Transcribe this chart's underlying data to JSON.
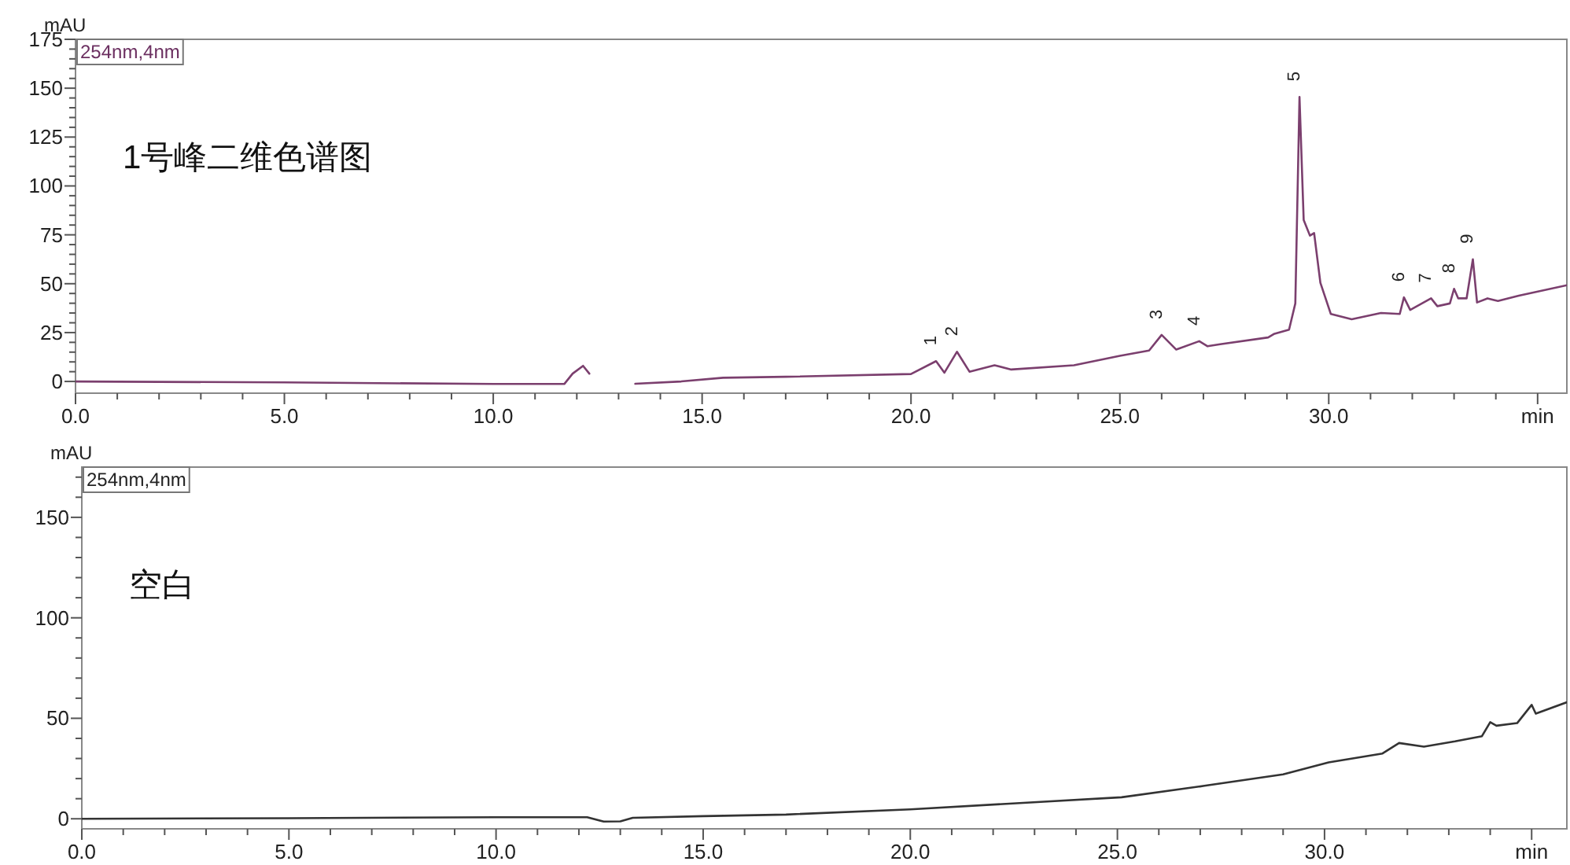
{
  "chart_data": [
    {
      "type": "line",
      "title": "1号峰二维色谱图",
      "ylabel": "mAU",
      "annotations": [
        "254nm,4nm",
        {
          "text": "1",
          "x": 20.6,
          "y": 10.4
        },
        {
          "text": "2",
          "x": 21.1,
          "y": 15.2
        },
        {
          "text": "3",
          "x": 26.0,
          "y": 23.8
        },
        {
          "text": "4",
          "x": 26.9,
          "y": 20.6
        },
        {
          "text": "5",
          "x": 29.3,
          "y": 145.5
        },
        {
          "text": "6",
          "x": 31.8,
          "y": 43
        },
        {
          "text": "7",
          "x": 32.45,
          "y": 42.5
        },
        {
          "text": "8",
          "x": 33.0,
          "y": 47.4
        },
        {
          "text": "9",
          "x": 33.45,
          "y": 62.5
        }
      ],
      "xlim": [
        0,
        35.7
      ],
      "ylim": [
        -6,
        175
      ],
      "xticks": [
        {
          "value": 0,
          "label": "0.0"
        },
        {
          "value": 1,
          "label": null
        },
        {
          "value": 2,
          "label": null
        },
        {
          "value": 3,
          "label": null
        },
        {
          "value": 4,
          "label": null
        },
        {
          "value": 5,
          "label": "5.0"
        },
        {
          "value": 6,
          "label": null
        },
        {
          "value": 7,
          "label": null
        },
        {
          "value": 8,
          "label": null
        },
        {
          "value": 9,
          "label": null
        },
        {
          "value": 10,
          "label": "10.0"
        },
        {
          "value": 11,
          "label": null
        },
        {
          "value": 12,
          "label": null
        },
        {
          "value": 13,
          "label": null
        },
        {
          "value": 14,
          "label": null
        },
        {
          "value": 15,
          "label": "15.0"
        },
        {
          "value": 16,
          "label": null
        },
        {
          "value": 17,
          "label": null
        },
        {
          "value": 18,
          "label": null
        },
        {
          "value": 19,
          "label": null
        },
        {
          "value": 20,
          "label": "20.0"
        },
        {
          "value": 21,
          "label": null
        },
        {
          "value": 22,
          "label": null
        },
        {
          "value": 23,
          "label": null
        },
        {
          "value": 24,
          "label": null
        },
        {
          "value": 25,
          "label": "25.0"
        },
        {
          "value": 26,
          "label": null
        },
        {
          "value": 27,
          "label": null
        },
        {
          "value": 28,
          "label": null
        },
        {
          "value": 29,
          "label": null
        },
        {
          "value": 30,
          "label": "30.0"
        },
        {
          "value": 31,
          "label": null
        },
        {
          "value": 32,
          "label": null
        },
        {
          "value": 33,
          "label": null
        },
        {
          "value": 34,
          "label": null
        },
        {
          "value": 35,
          "label": "min"
        }
      ],
      "yticks": [
        0,
        {
          "value": 5,
          "label": null
        },
        {
          "value": 10,
          "label": null
        },
        {
          "value": 15,
          "label": null
        },
        {
          "value": 20,
          "label": null
        },
        25,
        {
          "value": 30,
          "label": null
        },
        {
          "value": 35,
          "label": null
        },
        {
          "value": 40,
          "label": null
        },
        {
          "value": 45,
          "label": null
        },
        50,
        {
          "value": 55,
          "label": null
        },
        {
          "value": 60,
          "label": null
        },
        {
          "value": 65,
          "label": null
        },
        {
          "value": 70,
          "label": null
        },
        75,
        {
          "value": 80,
          "label": null
        },
        {
          "value": 85,
          "label": null
        },
        {
          "value": 90,
          "label": null
        },
        {
          "value": 95,
          "label": null
        },
        100,
        {
          "value": 105,
          "label": null
        },
        {
          "value": 110,
          "label": null
        },
        {
          "value": 115,
          "label": null
        },
        {
          "value": 120,
          "label": null
        },
        125,
        {
          "value": 130,
          "label": null
        },
        {
          "value": 135,
          "label": null
        },
        {
          "value": 140,
          "label": null
        },
        {
          "value": 145,
          "label": null
        },
        150,
        {
          "value": 155,
          "label": null
        },
        {
          "value": 160,
          "label": null
        },
        {
          "value": 165,
          "label": null
        },
        {
          "value": 170,
          "label": null
        },
        175
      ],
      "x": [
        0,
        5,
        10,
        11.7,
        11.9,
        12.15,
        12.3,
        12.5,
        13.2,
        13.4,
        14.5,
        15.5,
        17.0,
        20.0,
        20.6,
        20.8,
        21.1,
        21.4,
        22.0,
        22.4,
        23.9,
        25.0,
        25.7,
        26.0,
        26.35,
        26.9,
        27.1,
        27.4,
        28.55,
        28.7,
        29.05,
        29.2,
        29.3,
        29.4,
        29.55,
        29.65,
        29.8,
        30.05,
        30.55,
        31.25,
        31.7,
        31.8,
        31.95,
        32.45,
        32.6,
        32.9,
        33.0,
        33.1,
        33.3,
        33.45,
        33.55,
        33.8,
        34.05,
        34.55,
        35.7
      ],
      "series": [
        {
          "color": "#7b3f6e",
          "values": [
            0,
            -0.5,
            -1.3,
            -1.3,
            4,
            8,
            4,
            null,
            null,
            -1.2,
            0,
            1.9,
            2.4,
            3.8,
            10.4,
            4.5,
            15.2,
            5.0,
            8.3,
            6.1,
            8.3,
            13.1,
            15.8,
            23.8,
            16.3,
            20.6,
            18.0,
            19.0,
            22.5,
            24.4,
            26.5,
            39.9,
            145.5,
            82.6,
            74.6,
            75.9,
            50.5,
            34.5,
            31.8,
            35.0,
            34.5,
            43.0,
            36.6,
            42.5,
            38.5,
            39.9,
            47.4,
            42.5,
            42.5,
            62.5,
            40.4,
            42.5,
            41.2,
            43.9,
            49.2
          ]
        }
      ]
    },
    {
      "type": "line",
      "title": "空白",
      "ylabel": "mAU",
      "annotations": [
        "254nm,4nm"
      ],
      "xlim": [
        0,
        35.85
      ],
      "ylim": [
        -5,
        175
      ],
      "xticks": [
        {
          "value": 0,
          "label": "0.0"
        },
        {
          "value": 1,
          "label": null
        },
        {
          "value": 2,
          "label": null
        },
        {
          "value": 3,
          "label": null
        },
        {
          "value": 4,
          "label": null
        },
        {
          "value": 5,
          "label": "5.0"
        },
        {
          "value": 6,
          "label": null
        },
        {
          "value": 7,
          "label": null
        },
        {
          "value": 8,
          "label": null
        },
        {
          "value": 9,
          "label": null
        },
        {
          "value": 10,
          "label": "10.0"
        },
        {
          "value": 11,
          "label": null
        },
        {
          "value": 12,
          "label": null
        },
        {
          "value": 13,
          "label": null
        },
        {
          "value": 14,
          "label": null
        },
        {
          "value": 15,
          "label": "15.0"
        },
        {
          "value": 16,
          "label": null
        },
        {
          "value": 17,
          "label": null
        },
        {
          "value": 18,
          "label": null
        },
        {
          "value": 19,
          "label": null
        },
        {
          "value": 20,
          "label": "20.0"
        },
        {
          "value": 21,
          "label": null
        },
        {
          "value": 22,
          "label": null
        },
        {
          "value": 23,
          "label": null
        },
        {
          "value": 24,
          "label": null
        },
        {
          "value": 25,
          "label": "25.0"
        },
        {
          "value": 26,
          "label": null
        },
        {
          "value": 27,
          "label": null
        },
        {
          "value": 28,
          "label": null
        },
        {
          "value": 29,
          "label": null
        },
        {
          "value": 30,
          "label": "30.0"
        },
        {
          "value": 31,
          "label": null
        },
        {
          "value": 32,
          "label": null
        },
        {
          "value": 33,
          "label": null
        },
        {
          "value": 34,
          "label": null
        },
        {
          "value": 35,
          "label": "min"
        }
      ],
      "yticks": [
        0,
        {
          "value": 10,
          "label": null
        },
        {
          "value": 20,
          "label": null
        },
        {
          "value": 30,
          "label": null
        },
        {
          "value": 40,
          "label": null
        },
        50,
        {
          "value": 60,
          "label": null
        },
        {
          "value": 70,
          "label": null
        },
        {
          "value": 80,
          "label": null
        },
        {
          "value": 90,
          "label": null
        },
        100,
        {
          "value": 110,
          "label": null
        },
        {
          "value": 120,
          "label": null
        },
        {
          "value": 130,
          "label": null
        },
        {
          "value": 140,
          "label": null
        },
        150,
        {
          "value": 160,
          "label": null
        },
        {
          "value": 170,
          "label": null
        }
      ],
      "x": [
        0,
        5,
        10,
        12.2,
        12.6,
        13.0,
        13.3,
        15,
        17.0,
        20.0,
        25.1,
        27.1,
        29.0,
        30.1,
        31.4,
        31.8,
        32.4,
        33.15,
        33.8,
        34.0,
        34.15,
        34.65,
        35.0,
        35.1,
        35.85
      ],
      "series": [
        {
          "color": "#333333",
          "values": [
            0,
            0.3,
            0.8,
            0.8,
            -1.4,
            -1.3,
            0.5,
            1.3,
            2.1,
            4.7,
            10.7,
            16.4,
            22.1,
            28.1,
            32.5,
            37.7,
            35.9,
            38.5,
            41.1,
            48.1,
            46.3,
            47.6,
            56.7,
            52.3,
            58.0
          ]
        }
      ]
    }
  ]
}
